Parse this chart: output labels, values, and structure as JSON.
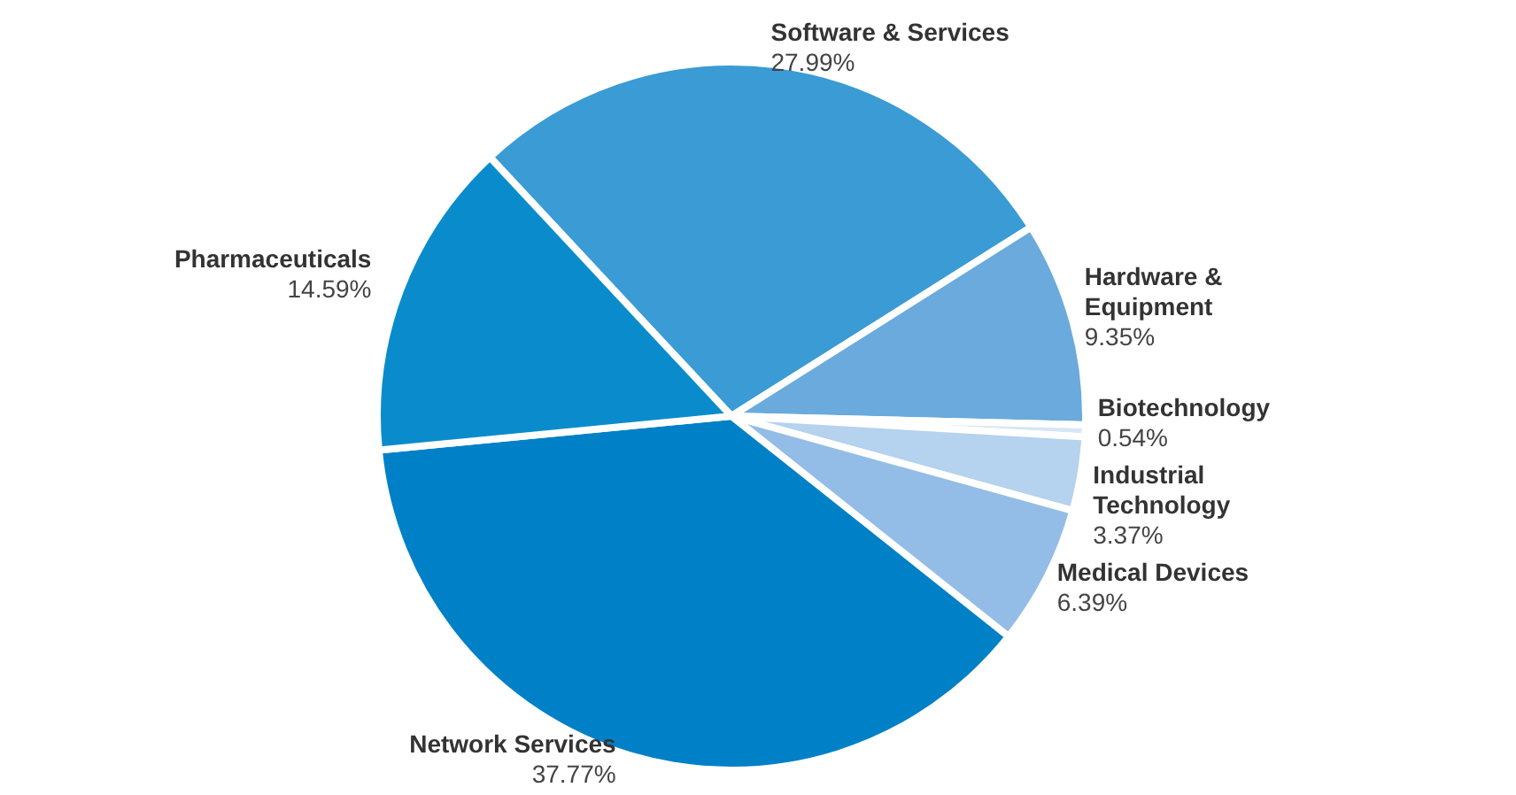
{
  "chart_data": {
    "type": "pie",
    "categories": [
      "Software & Services",
      "Hardware & Equipment",
      "Biotechnology",
      "Industrial Technology",
      "Medical Devices",
      "Network Services",
      "Pharmaceuticals"
    ],
    "values": [
      27.99,
      9.35,
      0.54,
      3.37,
      6.39,
      37.77,
      14.59
    ],
    "colors": [
      "#3a9bd5",
      "#6aaadc",
      "#d6e6f4",
      "#b5d2ee",
      "#93bde6",
      "#0080c6",
      "#0a8ccc"
    ],
    "value_labels": [
      "27.99%",
      "9.35%",
      "0.54%",
      "3.37%",
      "6.39%",
      "37.77%",
      "14.59%"
    ],
    "legend": false
  }
}
